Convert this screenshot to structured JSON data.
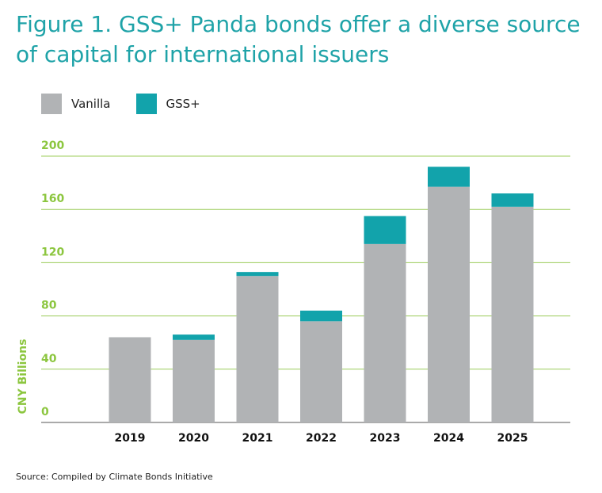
{
  "title": "Figure 1. GSS+ Panda bonds offer a diverse source of capital for international issuers",
  "source": "Source: Compiled by Climate Bonds Initiative",
  "colors": {
    "vanilla": "#b1b3b5",
    "gss": "#12a3ab",
    "title": "#1fa3a8",
    "axis_text": "#8cc63f",
    "grid": "#9ccc5a"
  },
  "chart_data": {
    "type": "bar",
    "stacked": true,
    "categories": [
      "2019",
      "2020",
      "2021",
      "2022",
      "2023",
      "2024",
      "2025"
    ],
    "series": [
      {
        "name": "Vanilla",
        "values": [
          64,
          62,
          110,
          76,
          134,
          177,
          162
        ]
      },
      {
        "name": "GSS+",
        "values": [
          0,
          4,
          3,
          8,
          21,
          15,
          10
        ]
      }
    ],
    "ylabel": "CNY Billions",
    "xlabel": "",
    "ylim": [
      0,
      200
    ],
    "yticks": [
      0,
      40,
      80,
      120,
      160,
      200
    ],
    "grid": true,
    "legend": "top-left"
  }
}
